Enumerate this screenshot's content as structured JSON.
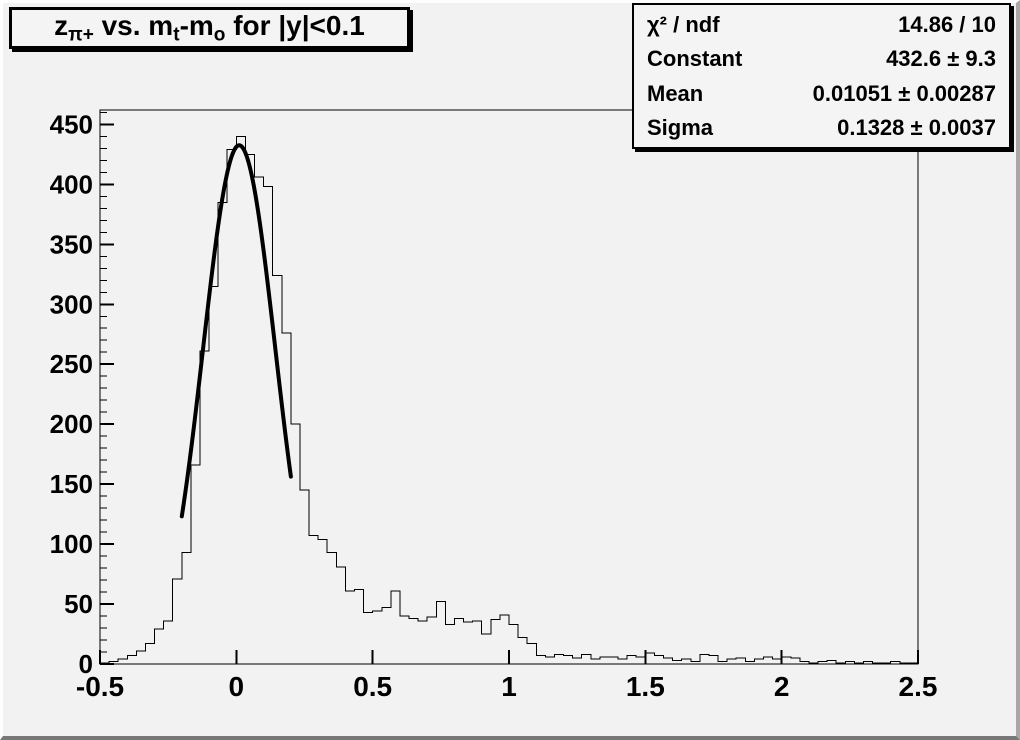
{
  "canvas": {
    "background": "#f2f2f2",
    "bevel_light": "#fefefe",
    "bevel_dark": "#8c8c8c",
    "line_color": "#000000"
  },
  "title": {
    "plain": "zπ+ vs. mt-mo for |y|<0.1",
    "segments": [
      {
        "text": "z"
      },
      {
        "sub": "π+"
      },
      {
        "text": " vs. m"
      },
      {
        "sub": "t"
      },
      {
        "text": "-m"
      },
      {
        "sub": "o"
      },
      {
        "text": " for |y|<0.1"
      }
    ]
  },
  "stats": {
    "rows": [
      {
        "label": "χ² / ndf",
        "value": "14.86 / 10"
      },
      {
        "label": "Constant",
        "value": "432.6 ± 9.3"
      },
      {
        "label": "Mean",
        "value": "0.01051 ± 0.00287"
      },
      {
        "label": "Sigma",
        "value": "0.1328 ± 0.0037"
      }
    ]
  },
  "chart_data": {
    "type": "bar",
    "style": "step-histogram-outline",
    "title": "z_{π+} vs. m_{t}-m_{o} for |y|<0.1",
    "xlabel": "",
    "ylabel": "",
    "xlim": [
      -0.5,
      2.5
    ],
    "ylim": [
      0,
      462
    ],
    "grid": false,
    "legend": "none",
    "x_tick_values": [
      -0.5,
      0,
      0.5,
      1,
      1.5,
      2,
      2.5
    ],
    "x_tick_labels": [
      "-0.5",
      "0",
      "0.5",
      "1",
      "1.5",
      "2",
      "2.5"
    ],
    "x_minor_step": 0.1,
    "y_tick_values": [
      0,
      50,
      100,
      150,
      200,
      250,
      300,
      350,
      400,
      450
    ],
    "y_tick_labels": [
      "0",
      "50",
      "100",
      "150",
      "200",
      "250",
      "300",
      "350",
      "400",
      "450"
    ],
    "y_minor_step": 10,
    "bin_start": -0.5,
    "bin_width": 0.0333333,
    "values": [
      1,
      2,
      4,
      7,
      11,
      17,
      29,
      36,
      71,
      93,
      166,
      261,
      315,
      385,
      429,
      440,
      425,
      406,
      398,
      324,
      276,
      200,
      145,
      107,
      104,
      93,
      81,
      61,
      62,
      43,
      44,
      47,
      61,
      40,
      38,
      36,
      39,
      52,
      33,
      38,
      35,
      36,
      25,
      37,
      41,
      33,
      22,
      17,
      7,
      6,
      8,
      7,
      5,
      8,
      4,
      6,
      6,
      4,
      7,
      6,
      9,
      7,
      5,
      3,
      4,
      2,
      8,
      7,
      2,
      4,
      5,
      2,
      4,
      6,
      4,
      6,
      5,
      2,
      1,
      2,
      3,
      1,
      2,
      1,
      2,
      1,
      1,
      2,
      1,
      1
    ],
    "fit": {
      "type": "gaussian",
      "constant": 432.6,
      "mean": 0.01051,
      "sigma": 0.1328,
      "range": [
        -0.2,
        0.2
      ],
      "line_width": 4,
      "color": "#000000"
    }
  }
}
